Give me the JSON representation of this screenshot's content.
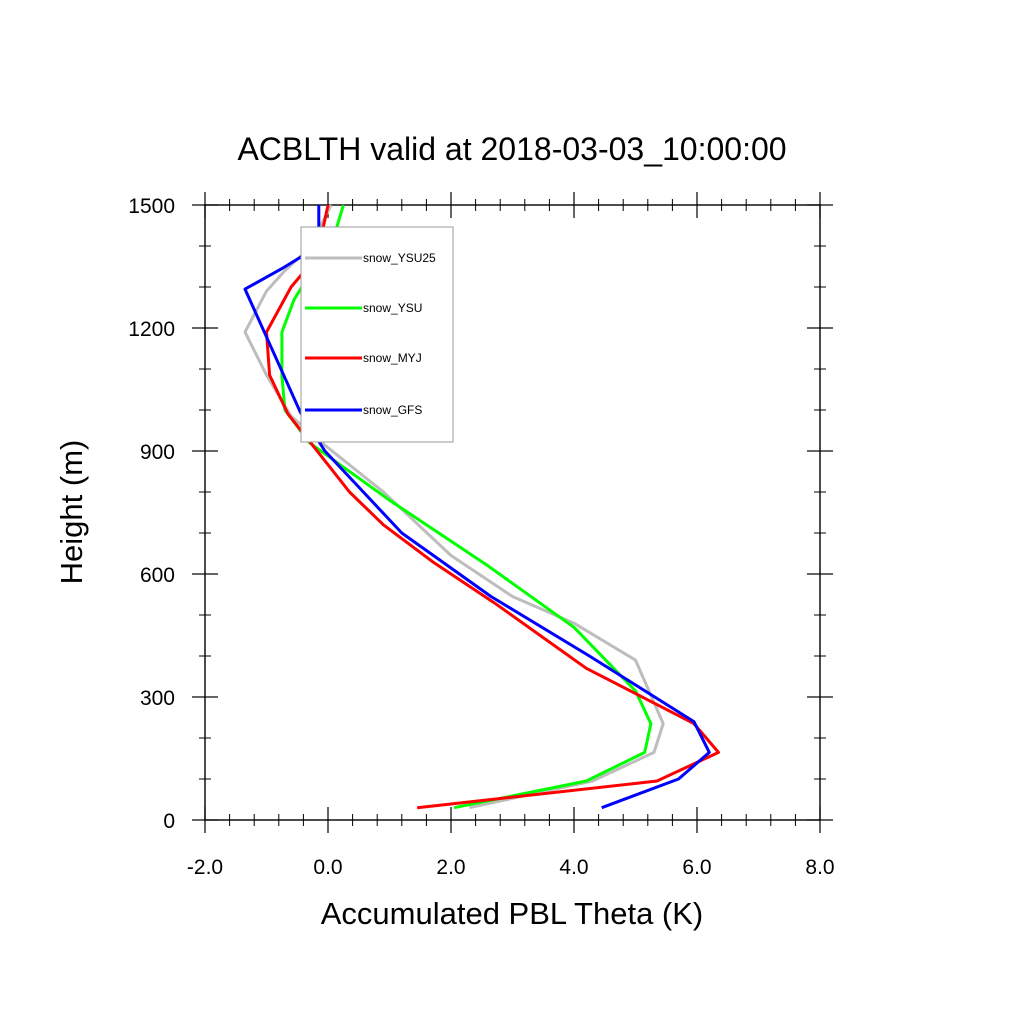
{
  "chart_data": {
    "type": "line",
    "title": "ACBLTH valid at 2018-03-03_10:00:00",
    "xlabel": "Accumulated PBL Theta (K)",
    "ylabel": "Height (m)",
    "xlim": [
      -2.0,
      8.0
    ],
    "ylim": [
      0,
      1500
    ],
    "xticks": [
      "-2.0",
      "0.0",
      "2.0",
      "4.0",
      "6.0",
      "8.0"
    ],
    "yticks": [
      "0",
      "300",
      "600",
      "900",
      "1200",
      "1500"
    ],
    "legend_position": "top-left inside plot",
    "series": [
      {
        "name": "snow_YSU25",
        "color": "#bdbdbd",
        "x": [
          2.3,
          4.3,
          5.3,
          5.45,
          5.0,
          4.0,
          3.0,
          2.0,
          0.9,
          -0.1,
          -0.6,
          -1.0,
          -1.35,
          -1.0,
          -0.7,
          -0.3,
          0.05
        ],
        "y": [
          30,
          95,
          165,
          235,
          390,
          480,
          545,
          645,
          800,
          920,
          985,
          1085,
          1190,
          1290,
          1340,
          1395,
          1500
        ]
      },
      {
        "name": "snow_YSU",
        "color": "#00ff00",
        "x": [
          2.05,
          4.2,
          5.15,
          5.25,
          5.0,
          4.0,
          2.6,
          1.0,
          -0.3,
          -0.7,
          -0.75,
          -0.75,
          -0.55,
          -0.3,
          0.05,
          0.25
        ],
        "y": [
          30,
          95,
          165,
          235,
          315,
          470,
          620,
          780,
          920,
          1000,
          1085,
          1190,
          1270,
          1330,
          1400,
          1500
        ]
      },
      {
        "name": "snow_MYJ",
        "color": "#ff0000",
        "x": [
          1.45,
          5.35,
          6.35,
          5.95,
          4.2,
          2.7,
          1.7,
          0.9,
          0.35,
          -0.15,
          -0.65,
          -0.95,
          -1.0,
          -0.6,
          -0.15,
          -0.1,
          0.0
        ],
        "y": [
          30,
          95,
          165,
          235,
          370,
          530,
          630,
          720,
          800,
          895,
          990,
          1085,
          1190,
          1300,
          1380,
          1430,
          1500
        ]
      },
      {
        "name": "snow_GFS",
        "color": "#0000ff",
        "x": [
          4.45,
          5.7,
          6.2,
          5.95,
          4.25,
          2.65,
          1.2,
          -0.05,
          -0.45,
          -1.35,
          -0.75,
          -0.15,
          -0.15
        ],
        "y": [
          30,
          100,
          165,
          240,
          400,
          545,
          700,
          900,
          995,
          1295,
          1345,
          1400,
          1500
        ]
      }
    ]
  }
}
